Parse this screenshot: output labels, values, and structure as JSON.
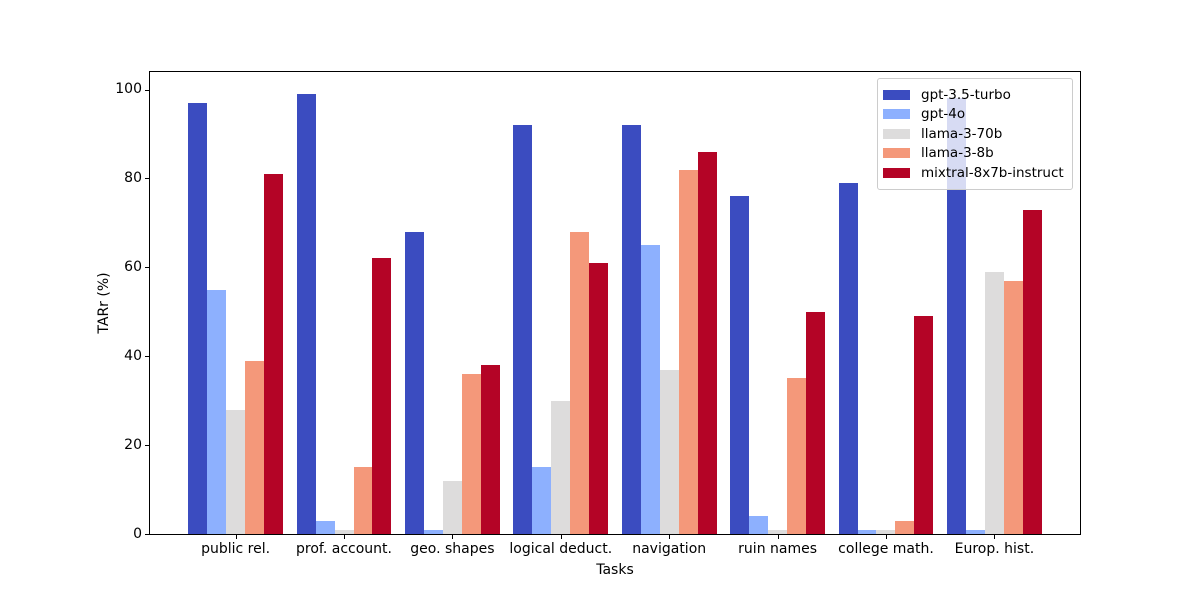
{
  "chart_data": {
    "type": "bar",
    "title": "",
    "xlabel": "Tasks",
    "ylabel": "TARr (%)",
    "categories": [
      "public rel.",
      "prof. account.",
      "geo. shapes",
      "logical deduct.",
      "navigation",
      "ruin names",
      "college math.",
      "Europ. hist."
    ],
    "series": [
      {
        "name": "gpt-3.5-turbo",
        "color": "#3b4cc0",
        "values": [
          97,
          99,
          68,
          92,
          92,
          76,
          79,
          98
        ]
      },
      {
        "name": "gpt-4o",
        "color": "#8db0fe",
        "values": [
          55,
          3,
          1,
          15,
          65,
          4,
          1,
          1
        ]
      },
      {
        "name": "llama-3-70b",
        "color": "#dddcdc",
        "values": [
          28,
          1,
          12,
          30,
          37,
          1,
          1,
          59
        ]
      },
      {
        "name": "llama-3-8b",
        "color": "#f4987a",
        "values": [
          39,
          15,
          36,
          68,
          82,
          35,
          3,
          57
        ]
      },
      {
        "name": "mixtral-8x7b-instruct",
        "color": "#b40426",
        "values": [
          81,
          62,
          38,
          61,
          86,
          50,
          49,
          73
        ]
      }
    ],
    "ylim": [
      0,
      103.95
    ],
    "yticks": [
      0,
      20,
      40,
      60,
      80,
      100
    ],
    "grid": false,
    "legend_position": "upper right"
  },
  "style": {
    "background": "#ffffff",
    "axis_color": "#000000",
    "legend_border": "#cccccc",
    "legend_background": "rgba(255,255,255,0.8)"
  }
}
